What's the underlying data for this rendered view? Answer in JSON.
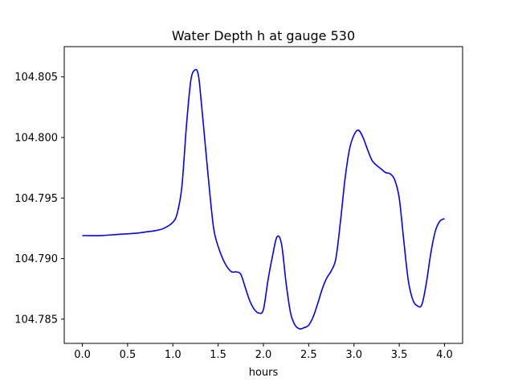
{
  "chart_data": {
    "type": "line",
    "title": "Water Depth h at gauge 530",
    "xlabel": "hours",
    "ylabel": "",
    "xlim": [
      -0.2,
      4.2
    ],
    "ylim": [
      104.783,
      104.8075
    ],
    "xticks": [
      0.0,
      0.5,
      1.0,
      1.5,
      2.0,
      2.5,
      3.0,
      3.5,
      4.0
    ],
    "xtick_labels": [
      "0.0",
      "0.5",
      "1.0",
      "1.5",
      "2.0",
      "2.5",
      "3.0",
      "3.5",
      "4.0"
    ],
    "yticks": [
      104.785,
      104.79,
      104.795,
      104.8,
      104.805
    ],
    "ytick_labels": [
      "104.785",
      "104.790",
      "104.795",
      "104.800",
      "104.805"
    ],
    "grid": false,
    "colors": {
      "line": "#0000ff",
      "axes": "#000000",
      "background": "#ffffff"
    },
    "series": [
      {
        "x": [
          0.0,
          0.2,
          0.4,
          0.6,
          0.7,
          0.8,
          0.9,
          1.0,
          1.05,
          1.1,
          1.15,
          1.2,
          1.25,
          1.28,
          1.3,
          1.35,
          1.4,
          1.45,
          1.5,
          1.55,
          1.6,
          1.65,
          1.7,
          1.75,
          1.8,
          1.85,
          1.9,
          1.95,
          2.0,
          2.05,
          2.1,
          2.15,
          2.2,
          2.25,
          2.3,
          2.35,
          2.4,
          2.45,
          2.5,
          2.55,
          2.6,
          2.65,
          2.7,
          2.75,
          2.8,
          2.85,
          2.9,
          2.95,
          3.0,
          3.05,
          3.1,
          3.15,
          3.2,
          3.25,
          3.3,
          3.35,
          3.4,
          3.45,
          3.5,
          3.55,
          3.6,
          3.65,
          3.7,
          3.75,
          3.8,
          3.85,
          3.9,
          3.95,
          4.0
        ],
        "y": [
          104.7919,
          104.7919,
          104.792,
          104.7921,
          104.7922,
          104.7923,
          104.7925,
          104.793,
          104.7938,
          104.796,
          104.801,
          104.8048,
          104.8056,
          104.8052,
          104.804,
          104.8,
          104.796,
          104.7925,
          104.791,
          104.79,
          104.7893,
          104.7889,
          104.7889,
          104.7887,
          104.7876,
          104.7865,
          104.7858,
          104.7855,
          104.7858,
          104.7882,
          104.7902,
          104.7918,
          104.7912,
          104.788,
          104.7855,
          104.7845,
          104.7842,
          104.7843,
          104.7845,
          104.7852,
          104.7863,
          104.7875,
          104.7884,
          104.789,
          104.79,
          104.793,
          104.7965,
          104.799,
          104.8002,
          104.8006,
          104.8,
          104.799,
          104.7981,
          104.7977,
          104.7974,
          104.7971,
          104.797,
          104.7965,
          104.795,
          104.7915,
          104.7882,
          104.7866,
          104.7861,
          104.7862,
          104.788,
          104.7905,
          104.7923,
          104.7931,
          104.7933
        ]
      }
    ]
  }
}
